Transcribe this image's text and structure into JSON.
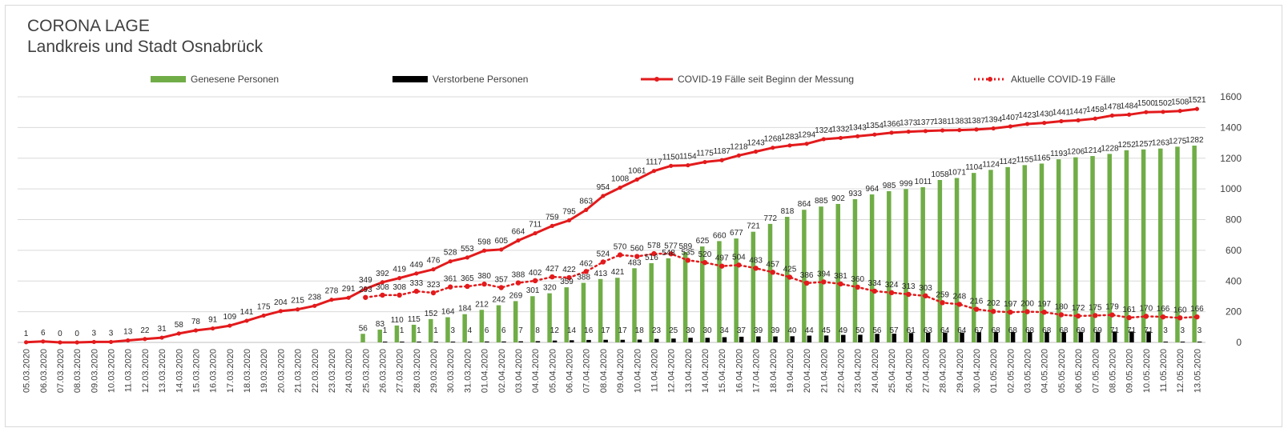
{
  "title": "CORONA LAGE",
  "subtitle": "Landkreis und Stadt Osnabrück",
  "legend": {
    "recovered": "Genesene Personen",
    "deceased": "Verstorbene Personen",
    "cumulative": "COVID-19 Fälle seit Beginn der Messung",
    "active": "Aktuelle COVID-19 Fälle"
  },
  "colors": {
    "recovered": "#70ad47",
    "deceased": "#000000",
    "cumulative": "#e31a1c",
    "active": "#e31a1c",
    "grid": "#d9d9d9",
    "text": "#404040"
  },
  "chart_data": {
    "type": "bar+line",
    "title": "CORONA LAGE",
    "subtitle": "Landkreis und Stadt Osnabrück",
    "ylim": [
      0,
      1600
    ],
    "yticks": [
      0,
      200,
      400,
      600,
      800,
      1000,
      1200,
      1400,
      1600
    ],
    "y_axis_side": "right",
    "grid": true,
    "legend_position": "top",
    "categories": [
      "05.03.2020",
      "06.03.2020",
      "07.03.2020",
      "08.03.2020",
      "09.03.2020",
      "10.03.2020",
      "11.03.2020",
      "12.03.2020",
      "13.03.2020",
      "14.03.2020",
      "15.03.2020",
      "16.03.2020",
      "17.03.2020",
      "18.03.2020",
      "19.03.2020",
      "20.03.2020",
      "21.03.2020",
      "22.03.2020",
      "23.03.2020",
      "24.03.2020",
      "25.03.2020",
      "26.03.2020",
      "27.03.2020",
      "28.03.2020",
      "29.03.2020",
      "30.03.2020",
      "31.03.2020",
      "01.04.2020",
      "02.04.2020",
      "03.04.2020",
      "04.04.2020",
      "05.04.2020",
      "06.04.2020",
      "07.04.2020",
      "08.04.2020",
      "09.04.2020",
      "10.04.2020",
      "11.04.2020",
      "12.04.2020",
      "13.04.2020",
      "14.04.2020",
      "15.04.2020",
      "16.04.2020",
      "17.04.2020",
      "18.04.2020",
      "19.04.2020",
      "20.04.2020",
      "21.04.2020",
      "22.04.2020",
      "23.04.2020",
      "24.04.2020",
      "25.04.2020",
      "26.04.2020",
      "27.04.2020",
      "28.04.2020",
      "29.04.2020",
      "30.04.2020",
      "01.05.2020",
      "02.05.2020",
      "03.05.2020",
      "04.05.2020",
      "05.05.2020",
      "06.05.2020",
      "07.05.2020",
      "08.05.2020",
      "09.05.2020",
      "10.05.2020",
      "11.05.2020",
      "12.05.2020",
      "13.05.2020"
    ],
    "series": [
      {
        "name": "Genesene Personen",
        "type": "bar",
        "values": [
          null,
          null,
          null,
          null,
          null,
          null,
          null,
          null,
          null,
          null,
          null,
          null,
          null,
          null,
          null,
          null,
          null,
          null,
          null,
          null,
          56,
          83,
          110,
          115,
          152,
          164,
          184,
          212,
          242,
          269,
          301,
          320,
          359,
          388,
          413,
          421,
          483,
          516,
          548,
          589,
          625,
          660,
          677,
          721,
          772,
          818,
          864,
          885,
          902,
          933,
          964,
          985,
          999,
          1011,
          1058,
          1071,
          1104,
          1124,
          1142,
          1155,
          1165,
          1193,
          1206,
          1214,
          1228,
          1252,
          1257,
          1263,
          1275,
          1282
        ]
      },
      {
        "name": "Verstorbene Personen",
        "type": "bar",
        "values": [
          null,
          null,
          null,
          null,
          null,
          null,
          null,
          null,
          null,
          null,
          null,
          null,
          null,
          null,
          null,
          null,
          null,
          null,
          null,
          null,
          null,
          1,
          1,
          1,
          1,
          3,
          4,
          6,
          6,
          7,
          8,
          12,
          14,
          16,
          17,
          17,
          18,
          23,
          25,
          30,
          30,
          34,
          37,
          39,
          39,
          40,
          44,
          45,
          49,
          50,
          56,
          57,
          61,
          63,
          64,
          64,
          67,
          68,
          68,
          68,
          68,
          68,
          69,
          69,
          71,
          71,
          71,
          3,
          3,
          3
        ]
      },
      {
        "name": "COVID-19 Fälle seit Beginn der Messung",
        "type": "line",
        "values": [
          1,
          6,
          0,
          0,
          3,
          3,
          13,
          22,
          31,
          58,
          78,
          91,
          109,
          141,
          175,
          204,
          215,
          238,
          278,
          291,
          349,
          392,
          419,
          449,
          476,
          528,
          553,
          598,
          605,
          664,
          711,
          759,
          795,
          863,
          954,
          1008,
          1061,
          1117,
          1150,
          1154,
          1175,
          1187,
          1218,
          1243,
          1268,
          1283,
          1294,
          1324,
          1332,
          1343,
          1354,
          1366,
          1373,
          1377,
          1381,
          1383,
          1387,
          1394,
          1407,
          1423,
          1430,
          1441,
          1447,
          1458,
          1478,
          1484,
          1500,
          1502,
          1508,
          1521
        ]
      },
      {
        "name": "Aktuelle COVID-19 Fälle",
        "type": "line-dotted",
        "values": [
          null,
          null,
          null,
          null,
          null,
          null,
          null,
          null,
          null,
          null,
          null,
          null,
          null,
          null,
          null,
          null,
          null,
          null,
          null,
          null,
          293,
          308,
          308,
          333,
          323,
          361,
          365,
          380,
          357,
          388,
          402,
          427,
          422,
          462,
          524,
          570,
          560,
          578,
          577,
          535,
          520,
          497,
          504,
          483,
          457,
          425,
          386,
          394,
          381,
          360,
          334,
          324,
          313,
          303,
          259,
          248,
          216,
          202,
          197,
          200,
          197,
          180,
          172,
          175,
          179,
          161,
          170,
          166,
          160,
          166
        ]
      }
    ]
  }
}
